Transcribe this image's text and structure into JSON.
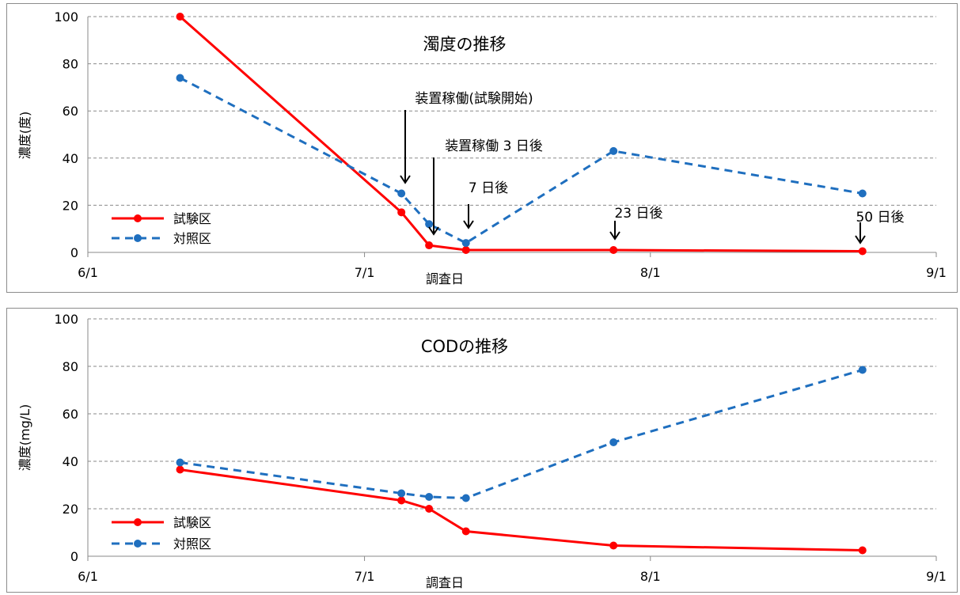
{
  "chart_data": [
    {
      "type": "line",
      "title": "濁度の推移",
      "xlabel": "調査日",
      "ylabel": "濃度(度)",
      "ylim": [
        0,
        100
      ],
      "yticks": [
        "0",
        "20",
        "40",
        "60",
        "80",
        "100"
      ],
      "xticks": [
        {
          "date": "2013-06-01",
          "label": "6/1"
        },
        {
          "date": "2013-07-01",
          "label": "7/1"
        },
        {
          "date": "2013-08-01",
          "label": "8/1"
        },
        {
          "date": "2013-09-01",
          "label": "9/1"
        }
      ],
      "grid": true,
      "legend_position": "bottom-left",
      "series": [
        {
          "name": "試験区",
          "color": "#ff0000",
          "style": "solid",
          "points": [
            {
              "x": "2013-06-11",
              "y": 100
            },
            {
              "x": "2013-07-05",
              "y": 17
            },
            {
              "x": "2013-07-08",
              "y": 3
            },
            {
              "x": "2013-07-12",
              "y": 1
            },
            {
              "x": "2013-07-28",
              "y": 1
            },
            {
              "x": "2013-08-24",
              "y": 0.5
            }
          ]
        },
        {
          "name": "対照区",
          "color": "#1f6fbf",
          "style": "dashed",
          "points": [
            {
              "x": "2013-06-11",
              "y": 74
            },
            {
              "x": "2013-07-05",
              "y": 25
            },
            {
              "x": "2013-07-08",
              "y": 12
            },
            {
              "x": "2013-07-12",
              "y": 4
            },
            {
              "x": "2013-07-28",
              "y": 43
            },
            {
              "x": "2013-08-24",
              "y": 25
            }
          ]
        }
      ],
      "annotations": [
        {
          "text": "装置稼働(試験開始)",
          "x": "2013-07-05"
        },
        {
          "text": "装置稼働 3 日後",
          "x": "2013-07-08"
        },
        {
          "text": "7 日後",
          "x": "2013-07-12"
        },
        {
          "text": "23 日後",
          "x": "2013-07-28"
        },
        {
          "text": "50 日後",
          "x": "2013-08-24"
        }
      ]
    },
    {
      "type": "line",
      "title": "CODの推移",
      "xlabel": "調査日",
      "ylabel": "濃度(mg/L)",
      "ylim": [
        0,
        100
      ],
      "yticks": [
        "0",
        "20",
        "40",
        "60",
        "80",
        "100"
      ],
      "xticks": [
        {
          "date": "2013-06-01",
          "label": "6/1"
        },
        {
          "date": "2013-07-01",
          "label": "7/1"
        },
        {
          "date": "2013-08-01",
          "label": "8/1"
        },
        {
          "date": "2013-09-01",
          "label": "9/1"
        }
      ],
      "grid": true,
      "legend_position": "bottom-left",
      "series": [
        {
          "name": "試験区",
          "color": "#ff0000",
          "style": "solid",
          "points": [
            {
              "x": "2013-06-11",
              "y": 36.5
            },
            {
              "x": "2013-07-05",
              "y": 23.5
            },
            {
              "x": "2013-07-08",
              "y": 20
            },
            {
              "x": "2013-07-12",
              "y": 10.5
            },
            {
              "x": "2013-07-28",
              "y": 4.5
            },
            {
              "x": "2013-08-24",
              "y": 2.5
            }
          ]
        },
        {
          "name": "対照区",
          "color": "#1f6fbf",
          "style": "dashed",
          "points": [
            {
              "x": "2013-06-11",
              "y": 39.5
            },
            {
              "x": "2013-07-05",
              "y": 26.5
            },
            {
              "x": "2013-07-08",
              "y": 25
            },
            {
              "x": "2013-07-12",
              "y": 24.5
            },
            {
              "x": "2013-07-28",
              "y": 48
            },
            {
              "x": "2013-08-24",
              "y": 78.5
            }
          ]
        }
      ],
      "annotations": []
    }
  ]
}
